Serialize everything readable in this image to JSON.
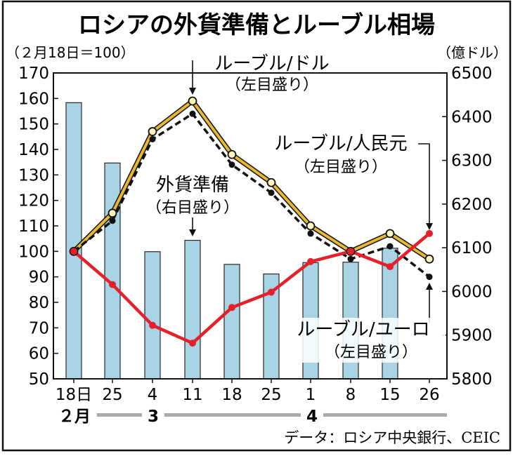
{
  "chart_data": {
    "type": "bar+line",
    "title": "ロシアの外貨準備とルーブル相場",
    "left_unit_note": "（２月18日＝100）",
    "right_unit_note": "（億ドル）",
    "x_ticks": [
      "18日",
      "25",
      "4",
      "11",
      "18",
      "25",
      "1",
      "8",
      "15",
      "26"
    ],
    "month_labels": [
      "２月",
      "3",
      "4"
    ],
    "left_axis": {
      "ylim": [
        50,
        170
      ],
      "ticks": [
        50,
        60,
        70,
        80,
        90,
        100,
        110,
        120,
        130,
        140,
        150,
        160,
        170
      ]
    },
    "right_axis": {
      "ylim": [
        5800,
        6500
      ],
      "ticks": [
        5800,
        5900,
        6000,
        6100,
        6200,
        6300,
        6400,
        6500
      ]
    },
    "bars": {
      "name": "外貨準備",
      "axis": "right",
      "color": "#a8d4e6",
      "values": [
        6432,
        6294,
        6091,
        6117,
        6062,
        6040,
        6066,
        6067,
        6099,
        null
      ]
    },
    "series": [
      {
        "name": "ルーブル/ドル",
        "axis": "left",
        "color": "#e8b830",
        "values": [
          100,
          115,
          147,
          159,
          138,
          127,
          110,
          100,
          107,
          97
        ]
      },
      {
        "name": "ルーブル/人民元",
        "axis": "left",
        "color": "#e4202a",
        "values": [
          100,
          87,
          71,
          64,
          78,
          84,
          96,
          100,
          94,
          107
        ]
      },
      {
        "name": "ルーブル/ユーロ",
        "axis": "left",
        "color": "#111111",
        "values": [
          null,
          112,
          144,
          154,
          134,
          123,
          107,
          97,
          102,
          90
        ]
      }
    ],
    "annotations": [
      {
        "text": "ルーブル/ドル",
        "sub": "（左目盛り）"
      },
      {
        "text": "ルーブル/人民元",
        "sub": "（左目盛り）"
      },
      {
        "text": "外貨準備",
        "sub": "（右目盛り）"
      },
      {
        "text": "ルーブル/ユーロ",
        "sub": "（左目盛り）"
      }
    ],
    "source": "データ：ロシア中央銀行、CEIC"
  }
}
